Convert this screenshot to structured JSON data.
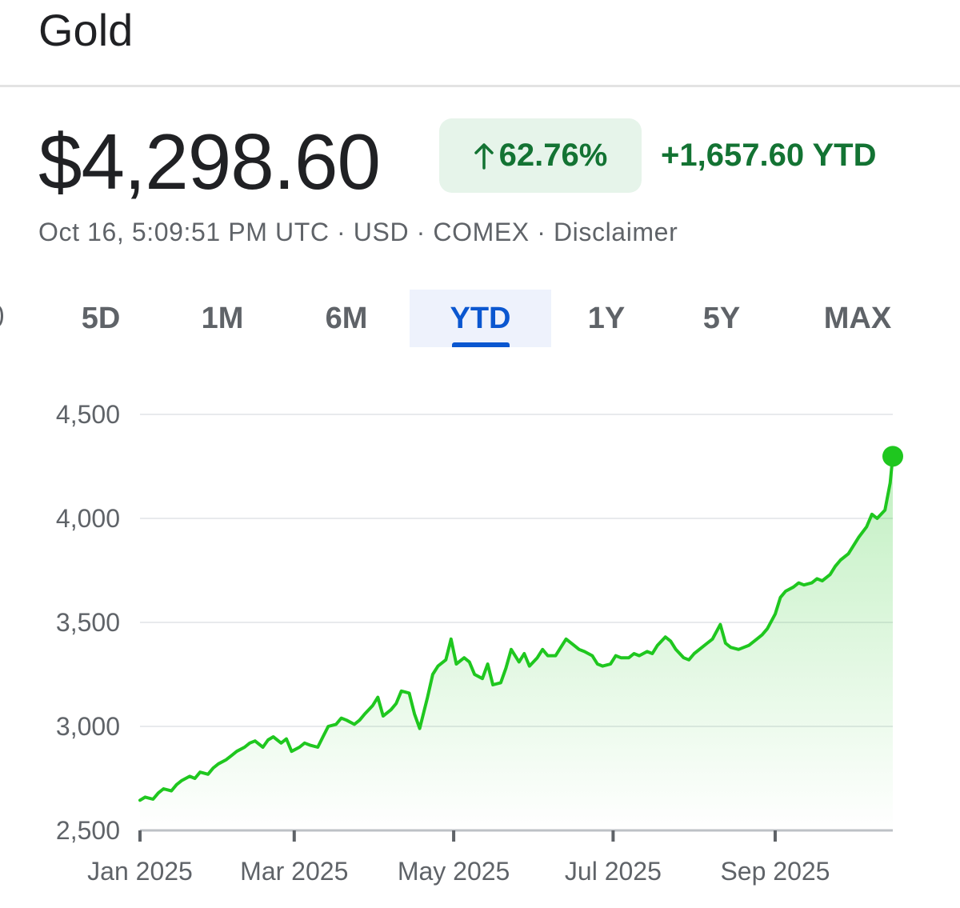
{
  "header": {
    "title": "Gold"
  },
  "quote": {
    "price": "$4,298.60",
    "change_percent": "62.76%",
    "change_direction": "up",
    "change_ytd": "+1,657.60 YTD",
    "meta": "Oct 16, 5:09:51 PM UTC · USD · COMEX · Disclaimer"
  },
  "tabs": [
    {
      "label": "5D"
    },
    {
      "label": "1M"
    },
    {
      "label": "6M"
    },
    {
      "label": "YTD",
      "active": true
    },
    {
      "label": "1Y"
    },
    {
      "label": "5Y"
    },
    {
      "label": "MAX"
    }
  ],
  "colors": {
    "line": "#1fc71f",
    "positive_text": "#137333",
    "badge_bg": "#e6f4ea",
    "active_tab": "#0b57d0",
    "grid": "#e8eaed"
  },
  "chart_data": {
    "type": "area",
    "title": "",
    "xlabel": "",
    "ylabel": "",
    "x_ticks": [
      "Jan 2025",
      "Mar 2025",
      "May 2025",
      "Jul 2025",
      "Sep 2025"
    ],
    "x_tick_dates": [
      "2025-01-01",
      "2025-03-01",
      "2025-05-01",
      "2025-07-01",
      "2025-09-01"
    ],
    "y_ticks": [
      "2,500",
      "3,000",
      "3,500",
      "4,000",
      "4,500"
    ],
    "ylim": [
      2500,
      4500
    ],
    "xlim": [
      "2025-01-01",
      "2025-10-16"
    ],
    "grid": true,
    "legend": "none",
    "end_marker": true,
    "series": [
      {
        "x": [
          "2025-01-01",
          "2025-01-03",
          "2025-01-06",
          "2025-01-08",
          "2025-01-10",
          "2025-01-13",
          "2025-01-15",
          "2025-01-17",
          "2025-01-20",
          "2025-01-22",
          "2025-01-24",
          "2025-01-27",
          "2025-01-29",
          "2025-01-31",
          "2025-02-03",
          "2025-02-05",
          "2025-02-07",
          "2025-02-10",
          "2025-02-12",
          "2025-02-14",
          "2025-02-17",
          "2025-02-19",
          "2025-02-21",
          "2025-02-24",
          "2025-02-26",
          "2025-02-28",
          "2025-03-03",
          "2025-03-05",
          "2025-03-07",
          "2025-03-10",
          "2025-03-12",
          "2025-03-14",
          "2025-03-17",
          "2025-03-19",
          "2025-03-21",
          "2025-03-24",
          "2025-03-26",
          "2025-03-28",
          "2025-03-31",
          "2025-04-02",
          "2025-04-04",
          "2025-04-07",
          "2025-04-09",
          "2025-04-11",
          "2025-04-14",
          "2025-04-16",
          "2025-04-18",
          "2025-04-21",
          "2025-04-23",
          "2025-04-25",
          "2025-04-28",
          "2025-04-30",
          "2025-05-02",
          "2025-05-05",
          "2025-05-07",
          "2025-05-09",
          "2025-05-12",
          "2025-05-14",
          "2025-05-16",
          "2025-05-19",
          "2025-05-21",
          "2025-05-23",
          "2025-05-26",
          "2025-05-28",
          "2025-05-30",
          "2025-06-02",
          "2025-06-04",
          "2025-06-06",
          "2025-06-09",
          "2025-06-11",
          "2025-06-13",
          "2025-06-16",
          "2025-06-18",
          "2025-06-20",
          "2025-06-23",
          "2025-06-25",
          "2025-06-27",
          "2025-06-30",
          "2025-07-02",
          "2025-07-04",
          "2025-07-07",
          "2025-07-09",
          "2025-07-11",
          "2025-07-14",
          "2025-07-16",
          "2025-07-18",
          "2025-07-21",
          "2025-07-23",
          "2025-07-25",
          "2025-07-28",
          "2025-07-30",
          "2025-08-01",
          "2025-08-04",
          "2025-08-06",
          "2025-08-08",
          "2025-08-11",
          "2025-08-13",
          "2025-08-15",
          "2025-08-18",
          "2025-08-20",
          "2025-08-22",
          "2025-08-25",
          "2025-08-27",
          "2025-08-29",
          "2025-09-01",
          "2025-09-03",
          "2025-09-05",
          "2025-09-08",
          "2025-09-10",
          "2025-09-12",
          "2025-09-15",
          "2025-09-17",
          "2025-09-19",
          "2025-09-22",
          "2025-09-24",
          "2025-09-26",
          "2025-09-29",
          "2025-10-01",
          "2025-10-03",
          "2025-10-06",
          "2025-10-08",
          "2025-10-10",
          "2025-10-13",
          "2025-10-15",
          "2025-10-16"
        ],
        "values": [
          2645,
          2660,
          2650,
          2680,
          2700,
          2690,
          2720,
          2740,
          2760,
          2750,
          2780,
          2770,
          2800,
          2820,
          2840,
          2860,
          2880,
          2900,
          2920,
          2930,
          2900,
          2935,
          2950,
          2920,
          2940,
          2880,
          2900,
          2920,
          2910,
          2900,
          2950,
          3000,
          3010,
          3040,
          3030,
          3010,
          3030,
          3060,
          3100,
          3140,
          3050,
          3080,
          3110,
          3170,
          3160,
          3060,
          2990,
          3140,
          3250,
          3290,
          3320,
          3420,
          3300,
          3330,
          3310,
          3250,
          3230,
          3300,
          3200,
          3210,
          3280,
          3370,
          3310,
          3350,
          3290,
          3330,
          3370,
          3340,
          3340,
          3380,
          3420,
          3390,
          3370,
          3360,
          3340,
          3300,
          3290,
          3300,
          3340,
          3330,
          3330,
          3350,
          3340,
          3360,
          3350,
          3390,
          3430,
          3410,
          3370,
          3330,
          3320,
          3350,
          3380,
          3400,
          3420,
          3490,
          3400,
          3380,
          3370,
          3380,
          3390,
          3420,
          3440,
          3470,
          3540,
          3620,
          3650,
          3670,
          3690,
          3680,
          3690,
          3710,
          3700,
          3730,
          3770,
          3800,
          3830,
          3870,
          3910,
          3960,
          4020,
          4000,
          4040,
          4170,
          4298.6
        ]
      }
    ]
  }
}
